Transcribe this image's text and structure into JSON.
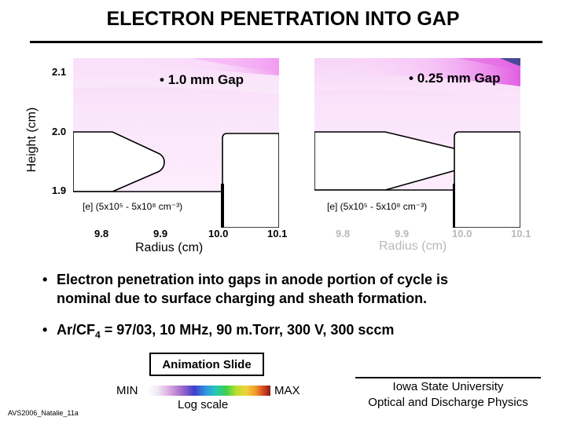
{
  "slide": {
    "title": "ELECTRON PENETRATION INTO GAP",
    "y_axis_title": "Height (cm)",
    "y_ticks": [
      "2.1",
      "2.0",
      "1.9"
    ],
    "panels": [
      {
        "gap_label": "1.0 mm Gap",
        "density_label": "[e] (5x10⁵ - 5x10⁸ cm⁻³)",
        "x_ticks": [
          "9.8",
          "9.9",
          "10.0",
          "10.1"
        ],
        "x_axis_title": "Radius (cm)"
      },
      {
        "gap_label": "0.25 mm Gap",
        "density_label": "[e] (5x10⁵ - 5x10⁸ cm⁻³)",
        "x_ticks": [
          "9.8",
          "9.9",
          "10.0",
          "10.1"
        ],
        "x_axis_title": "Radius (cm)"
      }
    ],
    "bullets": [
      {
        "line1": "Electron penetration into gaps in anode portion of cycle is",
        "line2": "nominal due to surface charging and sheath formation."
      },
      {
        "prefix": "Ar/CF",
        "subscript": "4",
        "suffix": " = 97/03, 10 MHz, 90 m.Torr, 300 V, 300 sccm"
      }
    ],
    "bullet_symbol": "•",
    "animation_label": "Animation Slide",
    "scale": {
      "min": "MIN",
      "max": "MAX",
      "note": "Log scale"
    },
    "affiliation": [
      "Iowa State University",
      "Optical and Discharge Physics"
    ],
    "footer_code": "AVS2006_Natalie_11a",
    "colors": {
      "background": "#ffffff",
      "plasma_fill": "#fbe9fb",
      "plasma_high": "#e84fe8",
      "plasma_peak": "#1b1f7a"
    }
  }
}
